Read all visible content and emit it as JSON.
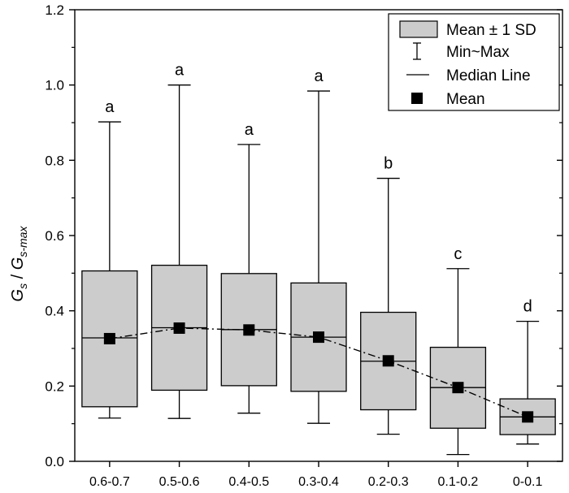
{
  "chart_data": {
    "type": "box",
    "ylabel_main": "G",
    "ylabel_main_sub": "s",
    "ylabel_sep": " / ",
    "ylabel_den": "G",
    "ylabel_den_sub": "s-max",
    "ylim": [
      0.0,
      1.2
    ],
    "yticks": [
      "0.0",
      "0.2",
      "0.4",
      "0.6",
      "0.8",
      "1.0",
      "1.2"
    ],
    "categories": [
      "0.6-0.7",
      "0.5-0.6",
      "0.4-0.5",
      "0.3-0.4",
      "0.2-0.3",
      "0.1-0.2",
      "0-0.1"
    ],
    "boxes": [
      {
        "min": 0.115,
        "box_low": 0.145,
        "median": 0.328,
        "mean": 0.326,
        "box_high": 0.506,
        "max": 0.902,
        "letter": "a"
      },
      {
        "min": 0.114,
        "box_low": 0.189,
        "median": 0.355,
        "mean": 0.354,
        "box_high": 0.521,
        "max": 1.0,
        "letter": "a"
      },
      {
        "min": 0.128,
        "box_low": 0.201,
        "median": 0.35,
        "mean": 0.349,
        "box_high": 0.499,
        "max": 0.842,
        "letter": "a"
      },
      {
        "min": 0.101,
        "box_low": 0.186,
        "median": 0.33,
        "mean": 0.33,
        "box_high": 0.474,
        "max": 0.984,
        "letter": "a"
      },
      {
        "min": 0.072,
        "box_low": 0.137,
        "median": 0.266,
        "mean": 0.267,
        "box_high": 0.396,
        "max": 0.752,
        "letter": "b"
      },
      {
        "min": 0.018,
        "box_low": 0.088,
        "median": 0.196,
        "mean": 0.196,
        "box_high": 0.303,
        "max": 0.512,
        "letter": "c"
      },
      {
        "min": 0.046,
        "box_low": 0.071,
        "median": 0.118,
        "mean": 0.118,
        "box_high": 0.166,
        "max": 0.372,
        "letter": "d"
      }
    ],
    "legend": {
      "placement": "top-right",
      "items": [
        "Mean ± 1 SD",
        "Min~Max",
        "Median Line",
        "Mean"
      ]
    },
    "colors": {
      "box_fill": "#cccccc",
      "stroke": "#000000",
      "mean_marker": "#000000"
    }
  }
}
